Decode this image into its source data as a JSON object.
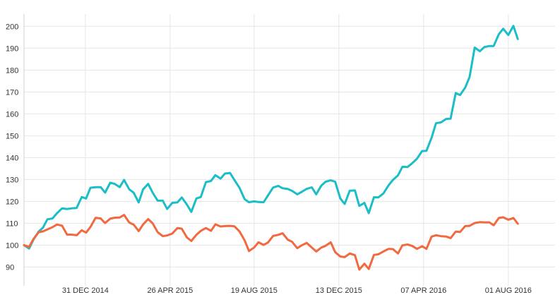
{
  "chart_data": {
    "type": "line",
    "title": "",
    "xlabel": "",
    "ylabel": "",
    "ylim": [
      84,
      203
    ],
    "y_ticks": [
      90,
      100,
      110,
      120,
      130,
      140,
      150,
      160,
      170,
      180,
      190,
      200
    ],
    "x_tick_labels": [
      "31 DEC 2014",
      "26 APR 2015",
      "19 AUG 2015",
      "13 DEC 2015",
      "07 APR 2016",
      "01 AUG 2016"
    ],
    "x_tick_dates": [
      "2014-12-31",
      "2015-04-26",
      "2015-08-19",
      "2015-12-13",
      "2016-04-07",
      "2016-08-01"
    ],
    "xlim": [
      "2014-10-08",
      "2016-10-04"
    ],
    "grid": true,
    "colors": {
      "teal": "#1bbdc7",
      "orange": "#f2693f"
    },
    "series": [
      {
        "color": "#1bbdc7",
        "points": [
          [
            "2014-10-08",
            100
          ],
          [
            "2014-10-15",
            98.4
          ],
          [
            "2014-10-21",
            102.5
          ],
          [
            "2014-10-28",
            106.2
          ],
          [
            "2014-11-03",
            108
          ],
          [
            "2014-11-09",
            111.8
          ],
          [
            "2014-11-16",
            112.2
          ],
          [
            "2014-11-22",
            114.5
          ],
          [
            "2014-11-29",
            116.8
          ],
          [
            "2014-12-06",
            116.5
          ],
          [
            "2014-12-12",
            116.8
          ],
          [
            "2014-12-19",
            117
          ],
          [
            "2014-12-26",
            122
          ],
          [
            "2015-01-01",
            121.3
          ],
          [
            "2015-01-07",
            126.2
          ],
          [
            "2015-01-14",
            126.5
          ],
          [
            "2015-01-21",
            126.5
          ],
          [
            "2015-01-27",
            124
          ],
          [
            "2015-02-03",
            128.5
          ],
          [
            "2015-02-09",
            128
          ],
          [
            "2015-02-16",
            126.5
          ],
          [
            "2015-02-22",
            129.8
          ],
          [
            "2015-03-01",
            125.5
          ],
          [
            "2015-03-07",
            124
          ],
          [
            "2015-03-14",
            119.5
          ],
          [
            "2015-03-20",
            125.5
          ],
          [
            "2015-03-27",
            128
          ],
          [
            "2015-04-02",
            124
          ],
          [
            "2015-04-09",
            120.3
          ],
          [
            "2015-04-16",
            120.3
          ],
          [
            "2015-04-22",
            116.5
          ],
          [
            "2015-04-29",
            119.3
          ],
          [
            "2015-05-06",
            119.5
          ],
          [
            "2015-05-12",
            121.8
          ],
          [
            "2015-05-19",
            118.5
          ],
          [
            "2015-05-25",
            115.2
          ],
          [
            "2015-06-01",
            121.3
          ],
          [
            "2015-06-07",
            122
          ],
          [
            "2015-06-14",
            128.8
          ],
          [
            "2015-06-21",
            129.3
          ],
          [
            "2015-06-27",
            132
          ],
          [
            "2015-07-04",
            130.4
          ],
          [
            "2015-07-10",
            132.7
          ],
          [
            "2015-07-17",
            133
          ],
          [
            "2015-07-23",
            129.8
          ],
          [
            "2015-07-30",
            126.2
          ],
          [
            "2015-08-06",
            121
          ],
          [
            "2015-08-12",
            119.6
          ],
          [
            "2015-08-19",
            120
          ],
          [
            "2015-08-25",
            119.7
          ],
          [
            "2015-09-01",
            119.6
          ],
          [
            "2015-09-07",
            122.7
          ],
          [
            "2015-09-14",
            126.3
          ],
          [
            "2015-09-21",
            127.1
          ],
          [
            "2015-09-27",
            126
          ],
          [
            "2015-10-04",
            125.7
          ],
          [
            "2015-10-10",
            124.8
          ],
          [
            "2015-10-17",
            123.2
          ],
          [
            "2015-10-23",
            124.3
          ],
          [
            "2015-10-30",
            125.7
          ],
          [
            "2015-11-06",
            126.4
          ],
          [
            "2015-11-12",
            123.2
          ],
          [
            "2015-11-19",
            127.2
          ],
          [
            "2015-11-25",
            129
          ],
          [
            "2015-12-02",
            129.6
          ],
          [
            "2015-12-08",
            129
          ],
          [
            "2015-12-15",
            121.3
          ],
          [
            "2015-12-21",
            118.8
          ],
          [
            "2015-12-28",
            124.9
          ],
          [
            "2016-01-04",
            125
          ],
          [
            "2016-01-10",
            117.9
          ],
          [
            "2016-01-17",
            119.3
          ],
          [
            "2016-01-23",
            114.6
          ],
          [
            "2016-01-30",
            121.9
          ],
          [
            "2016-02-05",
            121.8
          ],
          [
            "2016-02-12",
            123.6
          ],
          [
            "2016-02-19",
            127.3
          ],
          [
            "2016-02-25",
            129.8
          ],
          [
            "2016-03-03",
            131.9
          ],
          [
            "2016-03-09",
            135.8
          ],
          [
            "2016-03-16",
            135.7
          ],
          [
            "2016-03-22",
            137.3
          ],
          [
            "2016-03-29",
            139.5
          ],
          [
            "2016-04-05",
            143
          ],
          [
            "2016-04-11",
            143.1
          ],
          [
            "2016-04-18",
            149.1
          ],
          [
            "2016-04-24",
            155.7
          ],
          [
            "2016-05-01",
            156.1
          ],
          [
            "2016-05-08",
            157.7
          ],
          [
            "2016-05-14",
            157.8
          ],
          [
            "2016-05-21",
            169.5
          ],
          [
            "2016-05-27",
            168.6
          ],
          [
            "2016-06-03",
            172
          ],
          [
            "2016-06-09",
            176.9
          ],
          [
            "2016-06-16",
            190.3
          ],
          [
            "2016-06-23",
            188.6
          ],
          [
            "2016-06-29",
            190.5
          ],
          [
            "2016-07-06",
            191
          ],
          [
            "2016-07-12",
            191
          ],
          [
            "2016-07-19",
            196.4
          ],
          [
            "2016-07-25",
            198.9
          ],
          [
            "2016-08-01",
            196
          ],
          [
            "2016-08-08",
            200.2
          ],
          [
            "2016-08-14",
            194.2
          ]
        ]
      },
      {
        "color": "#f2693f",
        "points": [
          [
            "2014-10-08",
            100
          ],
          [
            "2014-10-15",
            99.2
          ],
          [
            "2014-10-21",
            102.8
          ],
          [
            "2014-10-28",
            105.9
          ],
          [
            "2014-11-03",
            106.3
          ],
          [
            "2014-11-09",
            107.2
          ],
          [
            "2014-11-16",
            108.2
          ],
          [
            "2014-11-22",
            109.4
          ],
          [
            "2014-11-29",
            108.9
          ],
          [
            "2014-12-06",
            104.8
          ],
          [
            "2014-12-12",
            104.8
          ],
          [
            "2014-12-19",
            104.5
          ],
          [
            "2014-12-26",
            106.8
          ],
          [
            "2015-01-01",
            105.7
          ],
          [
            "2015-01-07",
            108.3
          ],
          [
            "2015-01-14",
            112.5
          ],
          [
            "2015-01-21",
            112.2
          ],
          [
            "2015-01-27",
            110.1
          ],
          [
            "2015-02-03",
            112.1
          ],
          [
            "2015-02-09",
            112.5
          ],
          [
            "2015-02-16",
            112.6
          ],
          [
            "2015-02-22",
            113.8
          ],
          [
            "2015-03-01",
            110.3
          ],
          [
            "2015-03-07",
            109.4
          ],
          [
            "2015-03-14",
            106.4
          ],
          [
            "2015-03-20",
            109.4
          ],
          [
            "2015-03-27",
            111.9
          ],
          [
            "2015-04-02",
            110
          ],
          [
            "2015-04-09",
            105.9
          ],
          [
            "2015-04-16",
            104.1
          ],
          [
            "2015-04-22",
            104.4
          ],
          [
            "2015-04-29",
            105.3
          ],
          [
            "2015-05-06",
            107.8
          ],
          [
            "2015-05-12",
            107.5
          ],
          [
            "2015-05-19",
            103.5
          ],
          [
            "2015-05-25",
            101.9
          ],
          [
            "2015-06-01",
            104.7
          ],
          [
            "2015-06-07",
            106.5
          ],
          [
            "2015-06-14",
            107.8
          ],
          [
            "2015-06-21",
            106.5
          ],
          [
            "2015-06-27",
            109.5
          ],
          [
            "2015-07-04",
            108.5
          ],
          [
            "2015-07-10",
            108.7
          ],
          [
            "2015-07-17",
            108.8
          ],
          [
            "2015-07-23",
            108.6
          ],
          [
            "2015-07-30",
            106.3
          ],
          [
            "2015-08-06",
            102.2
          ],
          [
            "2015-08-12",
            97.3
          ],
          [
            "2015-08-19",
            98.9
          ],
          [
            "2015-08-25",
            101.3
          ],
          [
            "2015-09-01",
            100.1
          ],
          [
            "2015-09-07",
            101.2
          ],
          [
            "2015-09-14",
            104.2
          ],
          [
            "2015-09-21",
            104.7
          ],
          [
            "2015-09-27",
            105.4
          ],
          [
            "2015-10-04",
            102.5
          ],
          [
            "2015-10-10",
            101.5
          ],
          [
            "2015-10-17",
            98.6
          ],
          [
            "2015-10-23",
            99.9
          ],
          [
            "2015-10-30",
            101
          ],
          [
            "2015-11-06",
            98.9
          ],
          [
            "2015-11-12",
            97.1
          ],
          [
            "2015-11-19",
            98.9
          ],
          [
            "2015-11-25",
            99.7
          ],
          [
            "2015-12-02",
            101.3
          ],
          [
            "2015-12-08",
            96.8
          ],
          [
            "2015-12-15",
            94.8
          ],
          [
            "2015-12-21",
            94.5
          ],
          [
            "2015-12-28",
            96.2
          ],
          [
            "2016-01-04",
            95.4
          ],
          [
            "2016-01-10",
            88.8
          ],
          [
            "2016-01-17",
            91.5
          ],
          [
            "2016-01-23",
            89.1
          ],
          [
            "2016-01-30",
            95.5
          ],
          [
            "2016-02-05",
            95.8
          ],
          [
            "2016-02-12",
            97.1
          ],
          [
            "2016-02-19",
            98.3
          ],
          [
            "2016-02-25",
            98.2
          ],
          [
            "2016-03-03",
            96.2
          ],
          [
            "2016-03-09",
            99.9
          ],
          [
            "2016-03-16",
            100.3
          ],
          [
            "2016-03-22",
            99.7
          ],
          [
            "2016-03-29",
            98.3
          ],
          [
            "2016-04-05",
            99.5
          ],
          [
            "2016-04-11",
            98.3
          ],
          [
            "2016-04-18",
            103.9
          ],
          [
            "2016-04-24",
            104.5
          ],
          [
            "2016-05-01",
            104.1
          ],
          [
            "2016-05-08",
            103.9
          ],
          [
            "2016-05-14",
            103.2
          ],
          [
            "2016-05-21",
            106.2
          ],
          [
            "2016-05-27",
            106
          ],
          [
            "2016-06-03",
            108.7
          ],
          [
            "2016-06-09",
            108.8
          ],
          [
            "2016-06-16",
            110.1
          ],
          [
            "2016-06-23",
            110.5
          ],
          [
            "2016-06-29",
            110.4
          ],
          [
            "2016-07-06",
            110.4
          ],
          [
            "2016-07-12",
            109.1
          ],
          [
            "2016-07-19",
            112.4
          ],
          [
            "2016-07-25",
            112.7
          ],
          [
            "2016-08-01",
            111.6
          ],
          [
            "2016-08-08",
            112.4
          ],
          [
            "2016-08-14",
            109.8
          ]
        ]
      }
    ]
  }
}
